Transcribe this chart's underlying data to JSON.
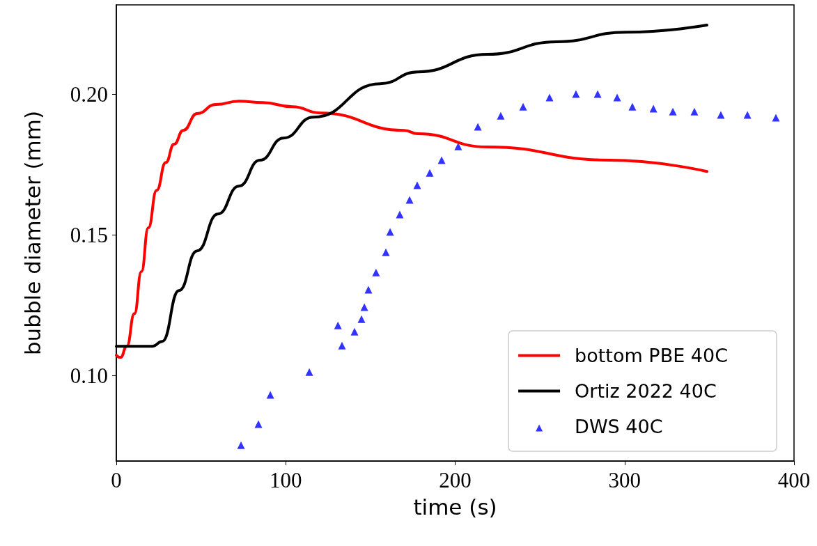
{
  "chart_data": {
    "type": "line",
    "xlabel": "time (s)",
    "ylabel": "bubble diameter (mm)",
    "xlim": [
      0,
      400
    ],
    "ylim": [
      0.0696,
      0.2317
    ],
    "xticks": [
      0,
      100,
      200,
      300,
      400
    ],
    "yticks": [
      {
        "value": 0.1,
        "label": "0.10"
      },
      {
        "value": 0.15,
        "label": "0.15"
      },
      {
        "value": 0.2,
        "label": "0.20"
      }
    ],
    "legend": "bottom right",
    "line_style": "solid",
    "series": [
      {
        "name": "bottom PBE 40C",
        "marker": "none",
        "color": "#ff0000",
        "x": [
          0,
          2.5,
          6.2,
          10.7,
          14.8,
          18.9,
          23.8,
          29.2,
          34.1,
          39.5,
          47.7,
          58.8,
          72.4,
          86.3,
          104.0,
          120.5,
          169.8,
          178.0,
          219.1,
          291.5,
          348.6
        ],
        "values": [
          0.1072,
          0.1064,
          0.1104,
          0.122,
          0.1369,
          0.1525,
          0.1658,
          0.1757,
          0.1822,
          0.1871,
          0.1931,
          0.1963,
          0.1975,
          0.197,
          0.1955,
          0.1933,
          0.1871,
          0.1859,
          0.1812,
          0.1765,
          0.1725
        ]
      },
      {
        "name": "Ortiz 2022 40C",
        "marker": "none",
        "color": "#000000",
        "x": [
          0,
          21.4,
          27.1,
          37.0,
          47.7,
          60.0,
          72.4,
          84.7,
          98.7,
          116.3,
          155.8,
          178,
          219,
          260,
          301,
          348.6
        ],
        "values": [
          0.1104,
          0.1104,
          0.1121,
          0.1302,
          0.1443,
          0.1574,
          0.1673,
          0.1765,
          0.1844,
          0.1918,
          0.2037,
          0.2079,
          0.2141,
          0.2186,
          0.222,
          0.2245
        ]
      },
      {
        "name": "DWS 40C",
        "type": "scatter",
        "marker": "triangle",
        "color": "#0000ff",
        "x": [
          73.6,
          83.9,
          90.9,
          113.9,
          130.8,
          133.2,
          140.6,
          144.7,
          146.4,
          148.8,
          153.3,
          159.1,
          161.6,
          167.3,
          173.1,
          177.6,
          185.0,
          192.0,
          201.8,
          213.4,
          226.9,
          240.1,
          255.7,
          271.3,
          284.1,
          295.6,
          304.6,
          317.0,
          328.5,
          341.2,
          356.8,
          372.5,
          389.3
        ],
        "values": [
          0.0752,
          0.0827,
          0.0931,
          0.1012,
          0.1178,
          0.1106,
          0.1156,
          0.12,
          0.1243,
          0.1305,
          0.1366,
          0.1438,
          0.151,
          0.1572,
          0.1624,
          0.1676,
          0.172,
          0.1765,
          0.1814,
          0.1884,
          0.1923,
          0.1955,
          0.1988,
          0.2,
          0.2,
          0.1988,
          0.1955,
          0.1948,
          0.1938,
          0.1938,
          0.1926,
          0.1926,
          0.1916
        ]
      }
    ]
  }
}
